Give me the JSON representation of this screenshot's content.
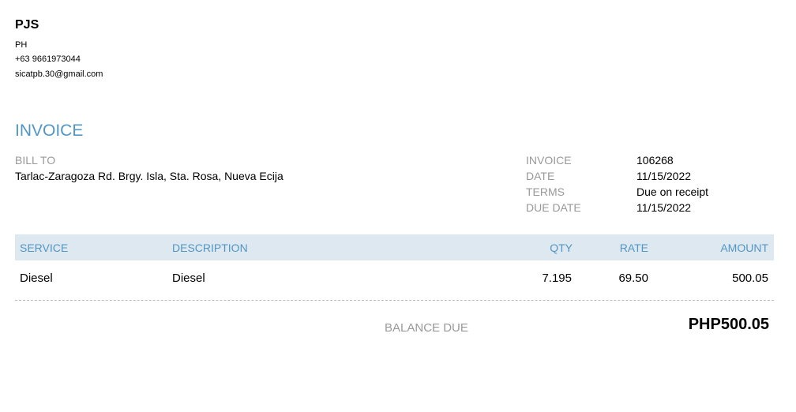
{
  "company": {
    "name": "PJS",
    "country": "PH",
    "phone": "+63 9661973044",
    "email": "sicatpb.30@gmail.com"
  },
  "title": "INVOICE",
  "bill_to": {
    "label": "BILL TO",
    "address": "Tarlac-Zaragoza Rd. Brgy. Isla, Sta. Rosa, Nueva Ecija"
  },
  "meta": [
    {
      "label": "INVOICE",
      "value": "106268"
    },
    {
      "label": "DATE",
      "value": "11/15/2022"
    },
    {
      "label": "TERMS",
      "value": "Due on receipt"
    },
    {
      "label": "DUE DATE",
      "value": "11/15/2022"
    }
  ],
  "table": {
    "headers": {
      "service": "SERVICE",
      "description": "DESCRIPTION",
      "qty": "QTY",
      "rate": "RATE",
      "amount": "AMOUNT"
    },
    "rows": [
      {
        "service": "Diesel",
        "description": "Diesel",
        "qty": "7.195",
        "rate": "69.50",
        "amount": "500.05"
      }
    ]
  },
  "balance": {
    "label": "BALANCE DUE",
    "value": "PHP500.05"
  },
  "colors": {
    "accent": "#5296c4",
    "header_bg": "#dde8f0",
    "label_gray": "#999999"
  }
}
